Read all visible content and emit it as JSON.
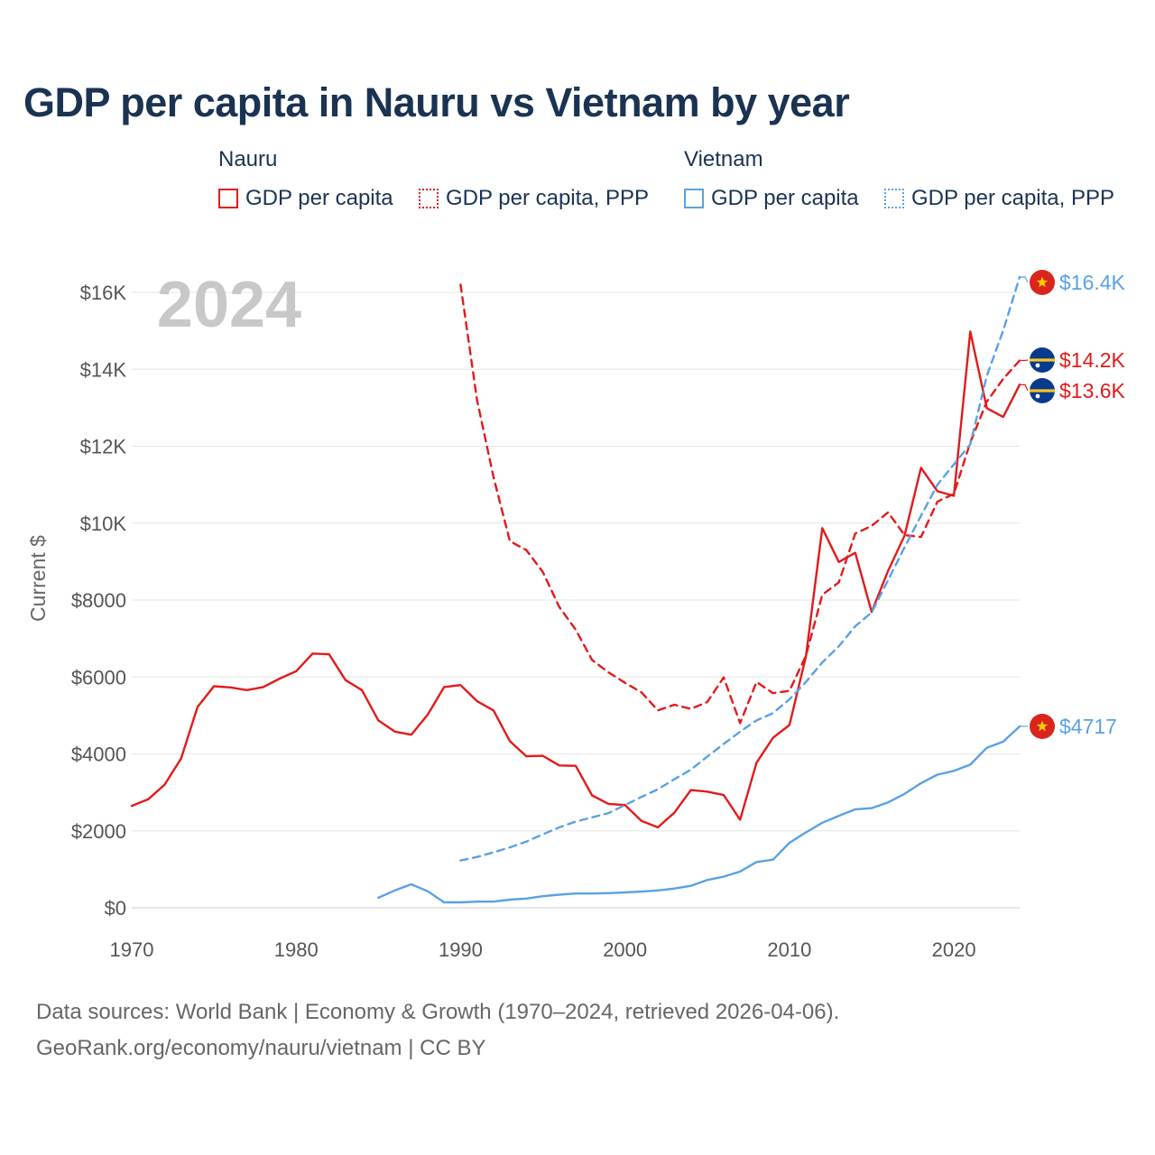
{
  "title": "GDP per capita in Nauru vs Vietnam by year",
  "year_overlay": "2024",
  "legend": {
    "groups": [
      {
        "name": "Nauru",
        "color": "#e31a1c",
        "items": [
          {
            "label": "GDP per capita",
            "style": "solid"
          },
          {
            "label": "GDP per capita, PPP",
            "style": "dotted"
          }
        ]
      },
      {
        "name": "Vietnam",
        "color": "#5aa1e3",
        "items": [
          {
            "label": "GDP per capita",
            "style": "solid"
          },
          {
            "label": "GDP per capita, PPP",
            "style": "dotted"
          }
        ]
      }
    ]
  },
  "end_labels": [
    {
      "text": "$16.4K",
      "color": "#5aa1e3",
      "flag": "vietnam-flag-icon"
    },
    {
      "text": "$14.2K",
      "color": "#e31a1c",
      "flag": "nauru-flag-icon"
    },
    {
      "text": "$13.6K",
      "color": "#e31a1c",
      "flag": "nauru-flag-icon"
    },
    {
      "text": "$4717",
      "color": "#5aa1e3",
      "flag": "vietnam-flag-icon"
    }
  ],
  "source": {
    "line1": "Data sources: World Bank | Economy & Growth (1970–2024, retrieved 2026-04-06).",
    "line2": "GeoRank.org/economy/nauru/vietnam | CC BY"
  },
  "chart_data": {
    "type": "line",
    "title": "GDP per capita in Nauru vs Vietnam by year",
    "xlabel": "",
    "ylabel": "Current $",
    "xlim": [
      1970,
      2024
    ],
    "ylim": [
      0,
      16400
    ],
    "x_ticks": [
      1970,
      1980,
      1990,
      2000,
      2010,
      2020
    ],
    "x_tick_labels": [
      "1970",
      "1980",
      "1990",
      "2000",
      "2010",
      "2020"
    ],
    "y_ticks": [
      0,
      2000,
      4000,
      6000,
      8000,
      10000,
      12000,
      14000,
      16000
    ],
    "y_tick_labels": [
      "$0",
      "$2000",
      "$4000",
      "$6000",
      "$8000",
      "$10K",
      "$12K",
      "$14K",
      "$16K"
    ],
    "grid": true,
    "series": [
      {
        "name": "Nauru GDP per capita",
        "color": "#e31a1c",
        "dash": "solid",
        "x": [
          1970,
          1971,
          1972,
          1973,
          1974,
          1975,
          1976,
          1977,
          1978,
          1979,
          1980,
          1981,
          1982,
          1983,
          1984,
          1985,
          1986,
          1987,
          1988,
          1989,
          1990,
          1991,
          1992,
          1993,
          1994,
          1995,
          1996,
          1997,
          1998,
          1999,
          2000,
          2001,
          2002,
          2003,
          2004,
          2005,
          2006,
          2007,
          2008,
          2009,
          2010,
          2011,
          2012,
          2013,
          2014,
          2015,
          2016,
          2017,
          2018,
          2019,
          2020,
          2021,
          2022,
          2023,
          2024
        ],
        "values": [
          2650,
          2820,
          3200,
          3880,
          5220,
          5760,
          5730,
          5660,
          5740,
          5960,
          6150,
          6610,
          6590,
          5920,
          5660,
          4870,
          4580,
          4500,
          5020,
          5740,
          5790,
          5370,
          5130,
          4330,
          3940,
          3950,
          3700,
          3690,
          2920,
          2700,
          2670,
          2260,
          2090,
          2470,
          3060,
          3020,
          2930,
          2290,
          3770,
          4420,
          4750,
          6530,
          9870,
          8990,
          9230,
          7690,
          8760,
          9670,
          11440,
          10830,
          10710,
          14980,
          12990,
          12760,
          13600
        ]
      },
      {
        "name": "Nauru GDP per capita, PPP",
        "color": "#e31a1c",
        "dash": "dashed",
        "x": [
          1990,
          1991,
          1992,
          1993,
          1994,
          1995,
          1996,
          1997,
          1998,
          1999,
          2000,
          2001,
          2002,
          2003,
          2004,
          2005,
          2006,
          2007,
          2008,
          2009,
          2010,
          2011,
          2012,
          2013,
          2014,
          2015,
          2016,
          2017,
          2018,
          2019,
          2020,
          2021,
          2022,
          2023,
          2024
        ],
        "values": [
          16200,
          13200,
          11200,
          9530,
          9300,
          8730,
          7820,
          7230,
          6440,
          6120,
          5850,
          5600,
          5130,
          5280,
          5170,
          5350,
          5990,
          4800,
          5870,
          5580,
          5640,
          6550,
          8140,
          8460,
          9730,
          9930,
          10280,
          9690,
          9640,
          10560,
          10760,
          12100,
          13160,
          13750,
          14230
        ]
      },
      {
        "name": "Vietnam GDP per capita",
        "color": "#5aa1e3",
        "dash": "solid",
        "x": [
          1985,
          1986,
          1987,
          1988,
          1989,
          1990,
          1991,
          1992,
          1993,
          1994,
          1995,
          1996,
          1997,
          1998,
          1999,
          2000,
          2001,
          2002,
          2003,
          2004,
          2005,
          2006,
          2007,
          2008,
          2009,
          2010,
          2011,
          2012,
          2013,
          2014,
          2015,
          2016,
          2017,
          2018,
          2019,
          2020,
          2021,
          2022,
          2023,
          2024
        ],
        "values": [
          260,
          450,
          610,
          430,
          140,
          140,
          160,
          160,
          210,
          240,
          300,
          340,
          370,
          370,
          380,
          400,
          420,
          450,
          500,
          570,
          720,
          810,
          940,
          1190,
          1250,
          1690,
          1960,
          2210,
          2390,
          2560,
          2590,
          2740,
          2960,
          3240,
          3460,
          3560,
          3720,
          4160,
          4320,
          4717
        ]
      },
      {
        "name": "Vietnam GDP per capita, PPP",
        "color": "#5aa1e3",
        "dash": "dashed",
        "x": [
          1990,
          1991,
          1992,
          1993,
          1994,
          1995,
          1996,
          1997,
          1998,
          1999,
          2000,
          2001,
          2002,
          2003,
          2004,
          2005,
          2006,
          2007,
          2008,
          2009,
          2010,
          2011,
          2012,
          2013,
          2014,
          2015,
          2016,
          2017,
          2018,
          2019,
          2020,
          2021,
          2022,
          2023,
          2024
        ],
        "values": [
          1230,
          1320,
          1440,
          1570,
          1720,
          1910,
          2090,
          2240,
          2350,
          2460,
          2670,
          2880,
          3080,
          3340,
          3590,
          3930,
          4260,
          4580,
          4870,
          5060,
          5420,
          5870,
          6380,
          6800,
          7320,
          7680,
          8520,
          9370,
          10190,
          11000,
          11530,
          12050,
          13830,
          15010,
          16400
        ]
      }
    ]
  }
}
